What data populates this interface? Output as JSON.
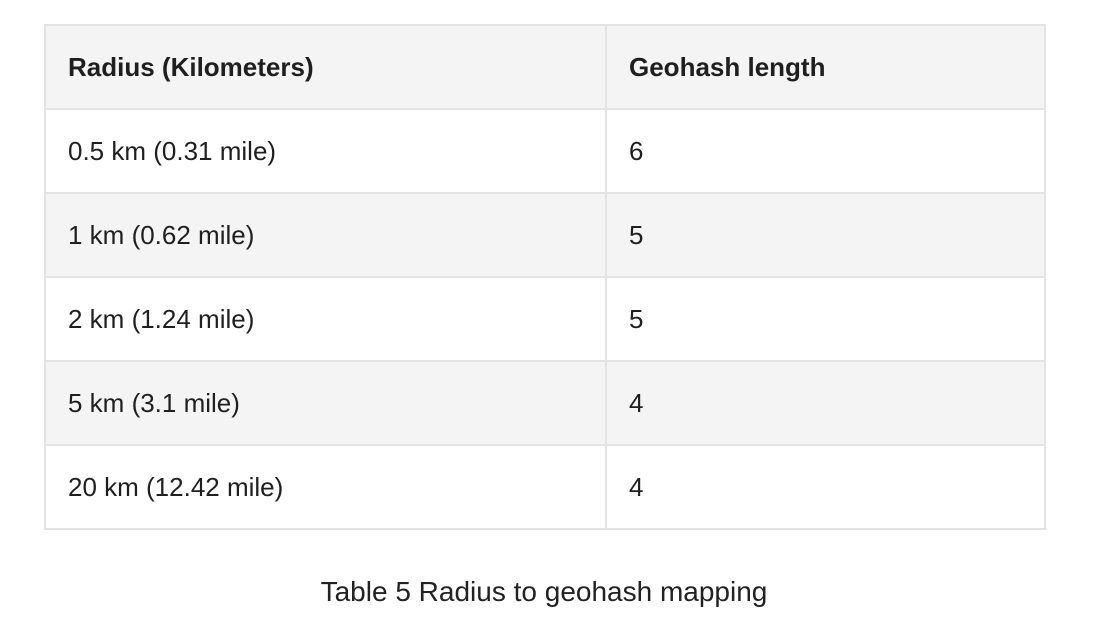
{
  "table": {
    "headers": [
      "Radius (Kilometers)",
      "Geohash length"
    ],
    "rows": [
      [
        "0.5 km (0.31 mile)",
        "6"
      ],
      [
        "1 km (0.62 mile)",
        "5"
      ],
      [
        "2 km (1.24 mile)",
        "5"
      ],
      [
        "5 km (3.1 mile)",
        "4"
      ],
      [
        "20 km (12.42 mile)",
        "4"
      ]
    ]
  },
  "caption": "Table 5 Radius to geohash mapping",
  "colors": {
    "header_bg": "#f4f4f4",
    "striped_row_bg": "#f4f4f4",
    "border": "#e3e3e3"
  }
}
